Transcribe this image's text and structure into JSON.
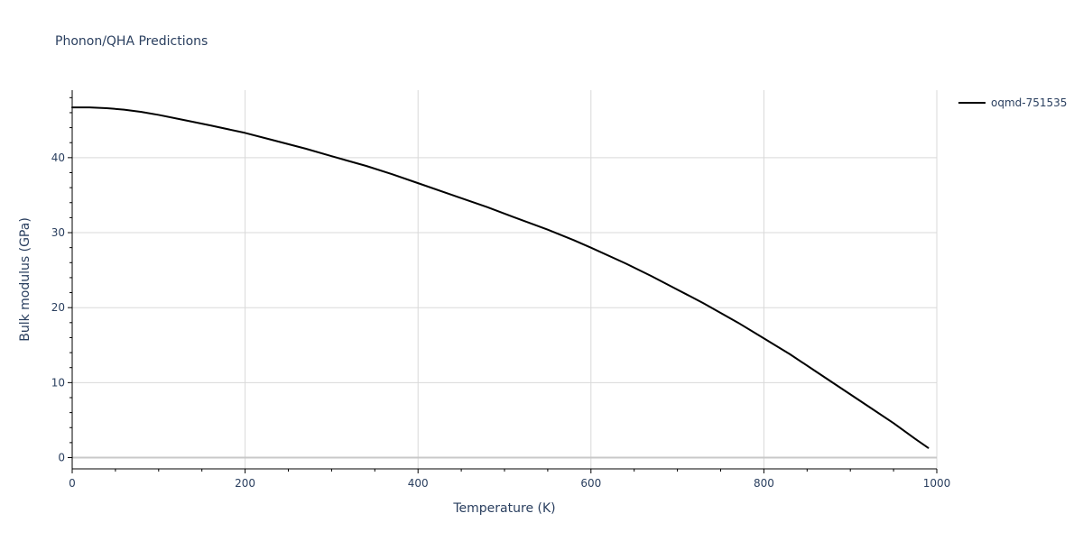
{
  "chart_data": {
    "type": "line",
    "title": "Phonon/QHA Predictions",
    "xlabel": "Temperature (K)",
    "ylabel": "Bulk modulus (GPa)",
    "xlim": [
      0,
      1000
    ],
    "ylim": [
      -1.5,
      49
    ],
    "x_ticks": [
      0,
      200,
      400,
      600,
      800,
      1000
    ],
    "x_tick_labels": [
      "0",
      "200",
      "400",
      "600",
      "800",
      "1000"
    ],
    "x_minor_step": 50,
    "y_ticks": [
      0,
      10,
      20,
      30,
      40
    ],
    "y_tick_labels": [
      "0",
      "10",
      "20",
      "30",
      "40"
    ],
    "y_minor_step": 2,
    "grid": true,
    "legend_position": "top-right",
    "series": [
      {
        "name": "oqmd-751535",
        "color": "#000000",
        "x": [
          0,
          20,
          40,
          60,
          80,
          100,
          130,
          160,
          200,
          230,
          270,
          300,
          340,
          370,
          400,
          440,
          480,
          510,
          550,
          580,
          600,
          640,
          670,
          700,
          730,
          770,
          800,
          830,
          860,
          890,
          920,
          950,
          975,
          990
        ],
        "y": [
          46.7,
          46.7,
          46.6,
          46.4,
          46.1,
          45.7,
          45.0,
          44.3,
          43.3,
          42.4,
          41.2,
          40.2,
          38.9,
          37.8,
          36.6,
          35.0,
          33.4,
          32.1,
          30.4,
          29.0,
          28.0,
          25.9,
          24.2,
          22.4,
          20.6,
          18.0,
          15.9,
          13.8,
          11.5,
          9.2,
          6.9,
          4.6,
          2.5,
          1.3
        ]
      }
    ]
  }
}
